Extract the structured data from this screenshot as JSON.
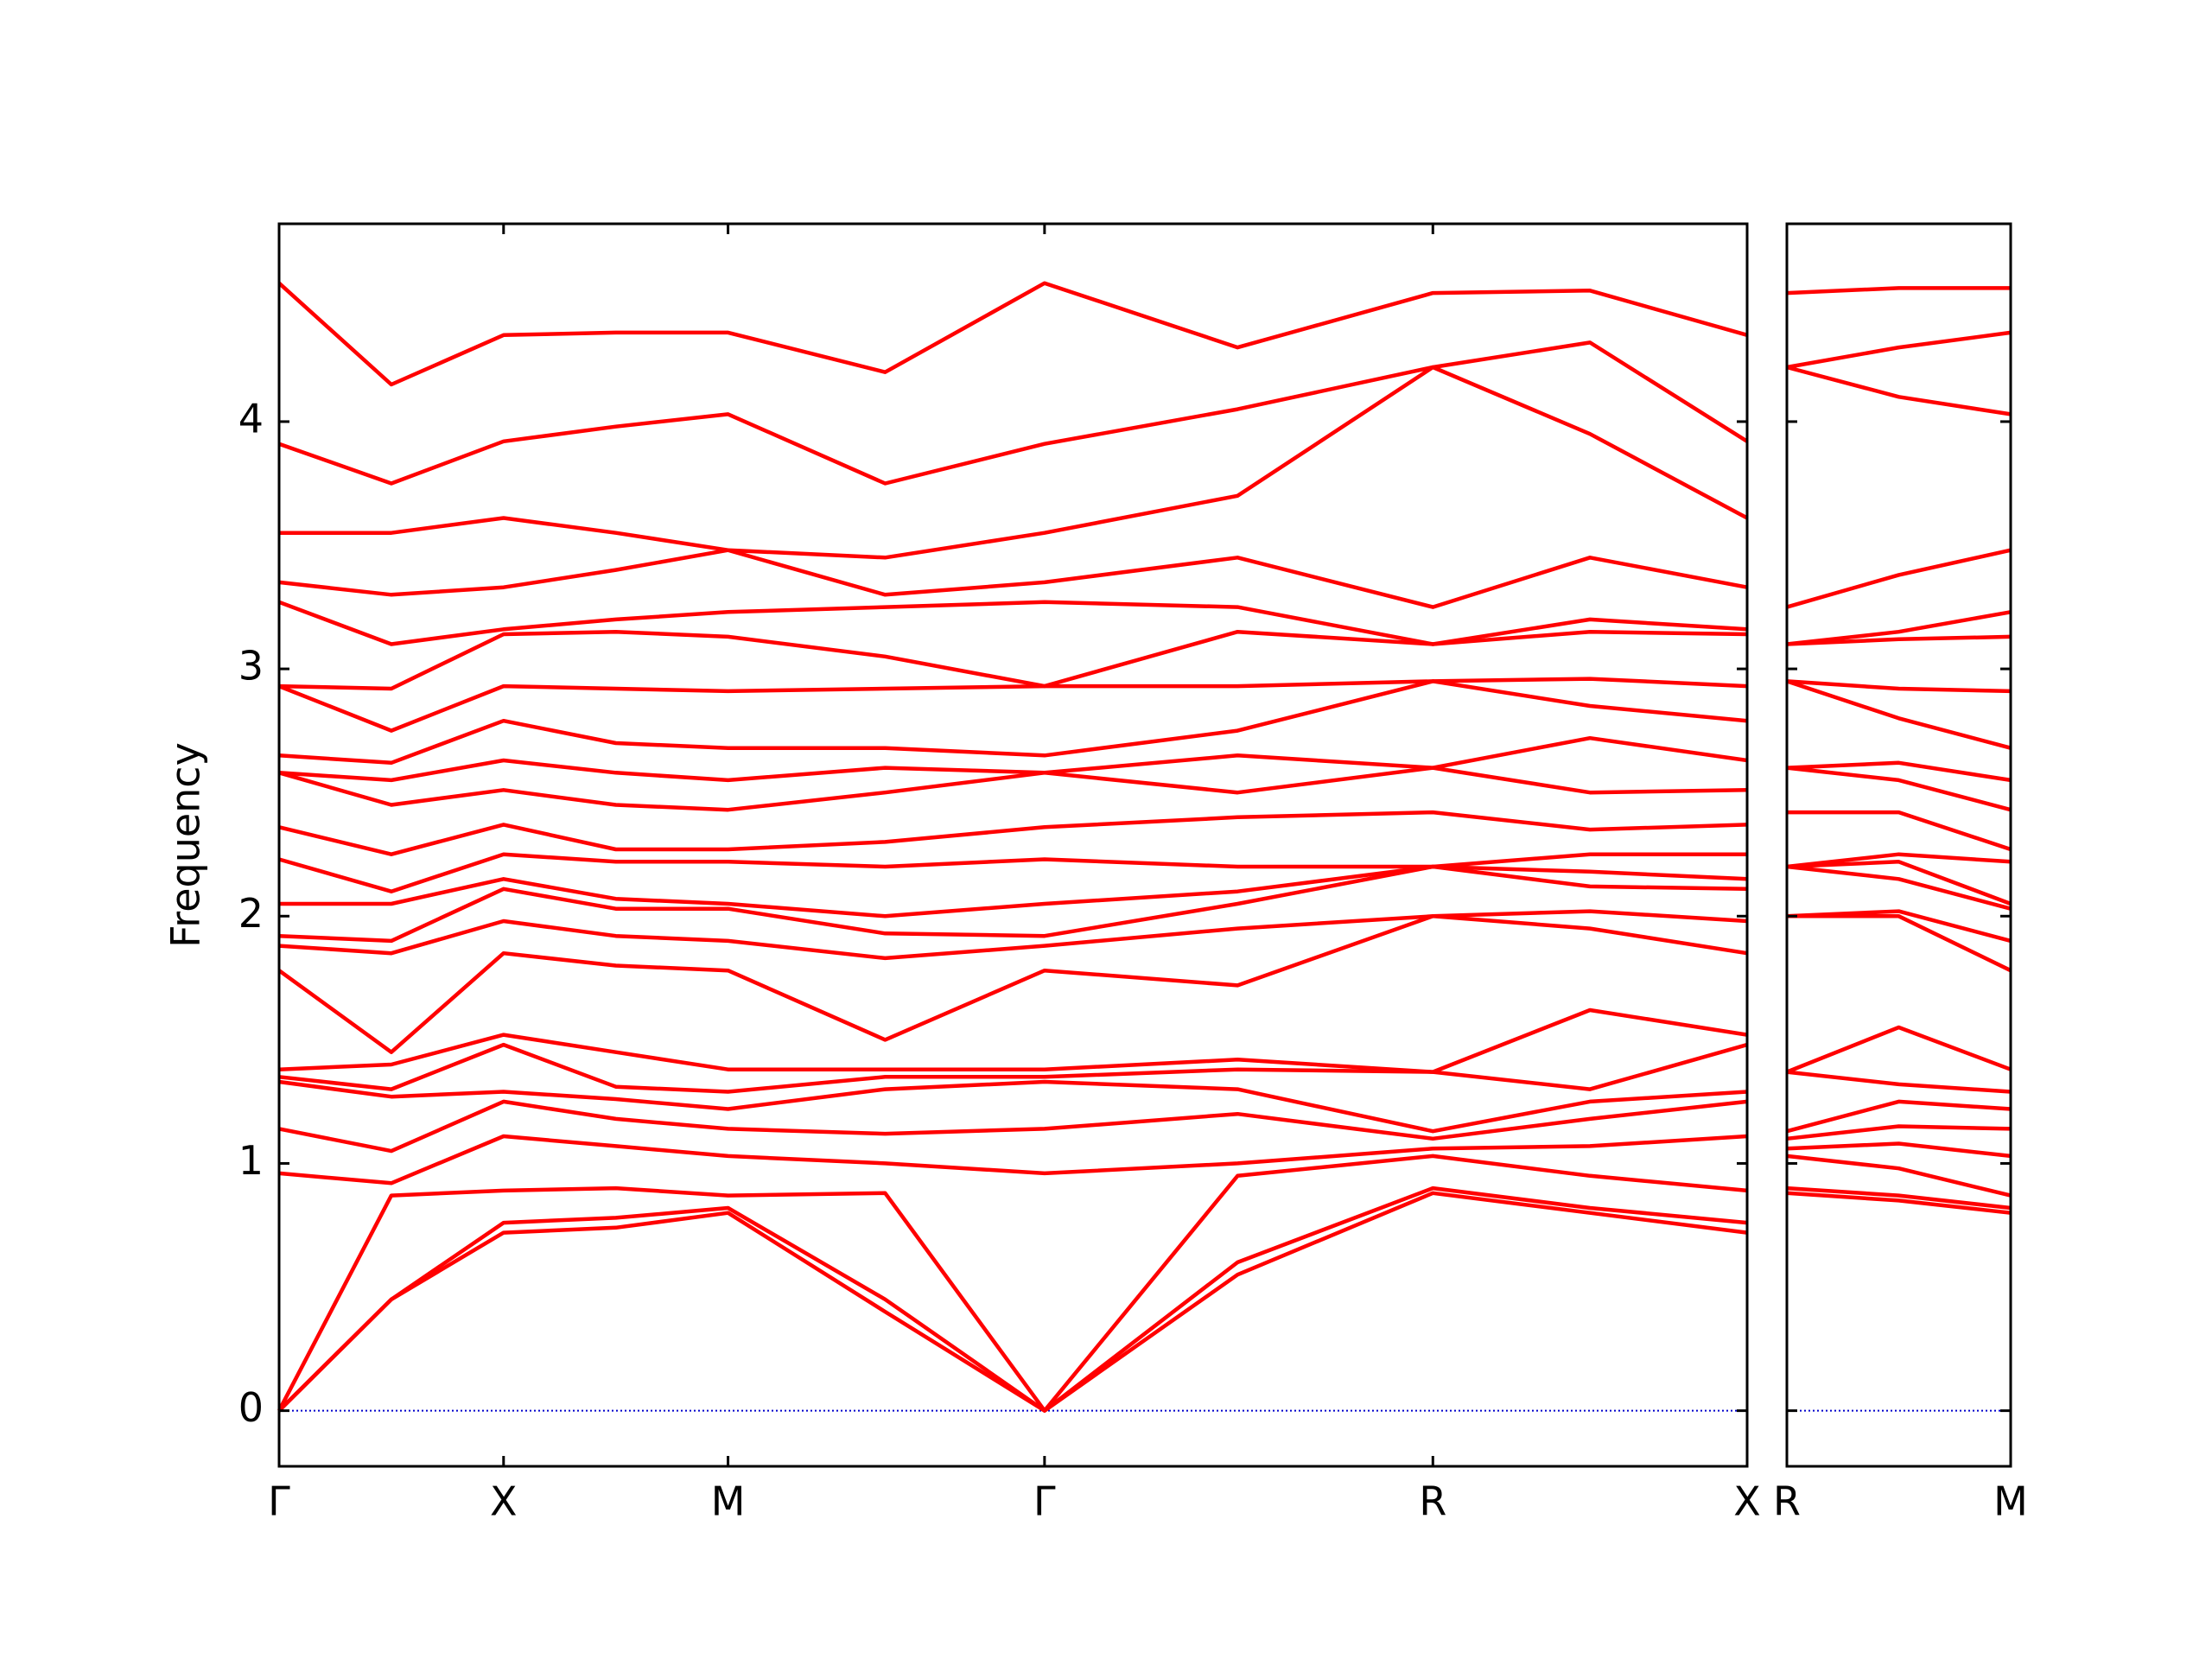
{
  "chart_data": [
    {
      "type": "line",
      "y_label": "Frequency",
      "x": [
        0,
        0.5,
        1,
        1.5,
        2,
        2.7,
        3.41,
        4.27,
        5.14,
        5.84,
        6.54
      ],
      "xlim": [
        0,
        6.54
      ],
      "ylim": [
        -0.225,
        4.8
      ],
      "xticks": [
        {
          "value": 0,
          "label": "Γ"
        },
        {
          "value": 1,
          "label": "X"
        },
        {
          "value": 2,
          "label": "M"
        },
        {
          "value": 3.41,
          "label": "Γ"
        },
        {
          "value": 5.14,
          "label": "R"
        },
        {
          "value": 6.54,
          "label": "X"
        }
      ],
      "yticks": [
        0,
        1,
        2,
        3,
        4
      ],
      "show_ytick_labels": true,
      "hline": 0,
      "hline_color": "#0000cc",
      "series": [
        {
          "color": "#ff0000",
          "values": [
            0,
            0.45,
            0.72,
            0.74,
            0.8,
            0.4,
            0,
            0.55,
            0.88,
            0.8,
            0.72
          ]
        },
        {
          "color": "#ff0000",
          "values": [
            0,
            0.45,
            0.76,
            0.78,
            0.82,
            0.45,
            0,
            0.6,
            0.9,
            0.82,
            0.76
          ]
        },
        {
          "color": "#ff0000",
          "values": [
            0,
            0.87,
            0.89,
            0.9,
            0.87,
            0.88,
            0,
            0.95,
            1.03,
            0.95,
            0.89
          ]
        },
        {
          "color": "#ff0000",
          "values": [
            0.96,
            0.92,
            1.11,
            1.07,
            1.03,
            1.0,
            0.96,
            1.0,
            1.06,
            1.07,
            1.11
          ]
        },
        {
          "color": "#ff0000",
          "values": [
            1.14,
            1.05,
            1.25,
            1.18,
            1.14,
            1.12,
            1.14,
            1.2,
            1.1,
            1.18,
            1.25
          ]
        },
        {
          "color": "#ff0000",
          "values": [
            1.33,
            1.27,
            1.29,
            1.26,
            1.22,
            1.3,
            1.33,
            1.3,
            1.13,
            1.25,
            1.29
          ]
        },
        {
          "color": "#ff0000",
          "values": [
            1.35,
            1.3,
            1.48,
            1.31,
            1.29,
            1.35,
            1.35,
            1.38,
            1.37,
            1.3,
            1.48
          ]
        },
        {
          "color": "#ff0000",
          "values": [
            1.38,
            1.4,
            1.52,
            1.45,
            1.38,
            1.38,
            1.38,
            1.42,
            1.37,
            1.62,
            1.52
          ]
        },
        {
          "color": "#ff0000",
          "values": [
            1.78,
            1.45,
            1.85,
            1.8,
            1.78,
            1.5,
            1.78,
            1.72,
            2.0,
            1.95,
            1.85
          ]
        },
        {
          "color": "#ff0000",
          "values": [
            1.88,
            1.85,
            1.98,
            1.92,
            1.9,
            1.83,
            1.88,
            1.95,
            2.0,
            2.02,
            1.98
          ]
        },
        {
          "color": "#ff0000",
          "values": [
            1.92,
            1.9,
            2.11,
            2.03,
            2.03,
            1.93,
            1.92,
            2.05,
            2.2,
            2.12,
            2.11
          ]
        },
        {
          "color": "#ff0000",
          "values": [
            2.05,
            2.05,
            2.15,
            2.07,
            2.05,
            2.0,
            2.05,
            2.1,
            2.2,
            2.18,
            2.15
          ]
        },
        {
          "color": "#ff0000",
          "values": [
            2.23,
            2.1,
            2.25,
            2.22,
            2.22,
            2.2,
            2.23,
            2.2,
            2.2,
            2.25,
            2.25
          ]
        },
        {
          "color": "#ff0000",
          "values": [
            2.36,
            2.25,
            2.37,
            2.27,
            2.27,
            2.3,
            2.36,
            2.4,
            2.42,
            2.35,
            2.37
          ]
        },
        {
          "color": "#ff0000",
          "values": [
            2.58,
            2.45,
            2.51,
            2.45,
            2.43,
            2.5,
            2.58,
            2.5,
            2.6,
            2.5,
            2.51
          ]
        },
        {
          "color": "#ff0000",
          "values": [
            2.58,
            2.55,
            2.63,
            2.58,
            2.55,
            2.6,
            2.58,
            2.65,
            2.6,
            2.72,
            2.63
          ]
        },
        {
          "color": "#ff0000",
          "values": [
            2.65,
            2.62,
            2.79,
            2.7,
            2.68,
            2.68,
            2.65,
            2.75,
            2.95,
            2.85,
            2.79
          ]
        },
        {
          "color": "#ff0000",
          "values": [
            2.93,
            2.75,
            2.93,
            2.92,
            2.91,
            2.92,
            2.93,
            2.93,
            2.95,
            2.96,
            2.93
          ]
        },
        {
          "color": "#ff0000",
          "values": [
            2.93,
            2.92,
            3.14,
            3.15,
            3.13,
            3.05,
            2.93,
            3.15,
            3.1,
            3.15,
            3.14
          ]
        },
        {
          "color": "#ff0000",
          "values": [
            3.27,
            3.1,
            3.16,
            3.2,
            3.23,
            3.25,
            3.27,
            3.25,
            3.1,
            3.2,
            3.16
          ]
        },
        {
          "color": "#ff0000",
          "values": [
            3.35,
            3.3,
            3.33,
            3.4,
            3.48,
            3.3,
            3.35,
            3.45,
            3.25,
            3.45,
            3.33
          ]
        },
        {
          "color": "#ff0000",
          "values": [
            3.55,
            3.55,
            3.61,
            3.55,
            3.48,
            3.45,
            3.55,
            3.7,
            4.22,
            3.95,
            3.61
          ]
        },
        {
          "color": "#ff0000",
          "values": [
            3.91,
            3.75,
            3.92,
            3.98,
            4.03,
            3.75,
            3.91,
            4.05,
            4.22,
            4.32,
            3.92
          ]
        },
        {
          "color": "#ff0000",
          "values": [
            4.56,
            4.15,
            4.35,
            4.36,
            4.36,
            4.2,
            4.56,
            4.3,
            4.52,
            4.53,
            4.35
          ]
        }
      ]
    },
    {
      "type": "line",
      "x": [
        0,
        0.5,
        1
      ],
      "xlim": [
        0,
        1
      ],
      "ylim": [
        -0.225,
        4.8
      ],
      "xticks": [
        {
          "value": 0,
          "label": "R"
        },
        {
          "value": 1,
          "label": "M"
        }
      ],
      "yticks": [
        0,
        1,
        2,
        3,
        4
      ],
      "show_ytick_labels": false,
      "hline": 0,
      "hline_color": "#0000cc",
      "series": [
        {
          "color": "#ff0000",
          "values": [
            0.88,
            0.85,
            0.8
          ]
        },
        {
          "color": "#ff0000",
          "values": [
            0.9,
            0.87,
            0.82
          ]
        },
        {
          "color": "#ff0000",
          "values": [
            1.03,
            0.98,
            0.87
          ]
        },
        {
          "color": "#ff0000",
          "values": [
            1.06,
            1.08,
            1.03
          ]
        },
        {
          "color": "#ff0000",
          "values": [
            1.1,
            1.15,
            1.14
          ]
        },
        {
          "color": "#ff0000",
          "values": [
            1.13,
            1.25,
            1.22
          ]
        },
        {
          "color": "#ff0000",
          "values": [
            1.37,
            1.32,
            1.29
          ]
        },
        {
          "color": "#ff0000",
          "values": [
            1.37,
            1.55,
            1.38
          ]
        },
        {
          "color": "#ff0000",
          "values": [
            2.0,
            2.0,
            1.78
          ]
        },
        {
          "color": "#ff0000",
          "values": [
            2.0,
            2.02,
            1.9
          ]
        },
        {
          "color": "#ff0000",
          "values": [
            2.2,
            2.15,
            2.03
          ]
        },
        {
          "color": "#ff0000",
          "values": [
            2.2,
            2.22,
            2.05
          ]
        },
        {
          "color": "#ff0000",
          "values": [
            2.2,
            2.25,
            2.22
          ]
        },
        {
          "color": "#ff0000",
          "values": [
            2.42,
            2.42,
            2.27
          ]
        },
        {
          "color": "#ff0000",
          "values": [
            2.6,
            2.55,
            2.43
          ]
        },
        {
          "color": "#ff0000",
          "values": [
            2.6,
            2.62,
            2.55
          ]
        },
        {
          "color": "#ff0000",
          "values": [
            2.95,
            2.8,
            2.68
          ]
        },
        {
          "color": "#ff0000",
          "values": [
            2.95,
            2.92,
            2.91
          ]
        },
        {
          "color": "#ff0000",
          "values": [
            3.1,
            3.12,
            3.13
          ]
        },
        {
          "color": "#ff0000",
          "values": [
            3.1,
            3.15,
            3.23
          ]
        },
        {
          "color": "#ff0000",
          "values": [
            3.25,
            3.38,
            3.48
          ]
        },
        {
          "color": "#ff0000",
          "values": [
            4.22,
            4.1,
            4.03
          ]
        },
        {
          "color": "#ff0000",
          "values": [
            4.22,
            4.3,
            4.36
          ]
        },
        {
          "color": "#ff0000",
          "values": [
            4.52,
            4.54,
            4.54
          ]
        }
      ]
    }
  ]
}
